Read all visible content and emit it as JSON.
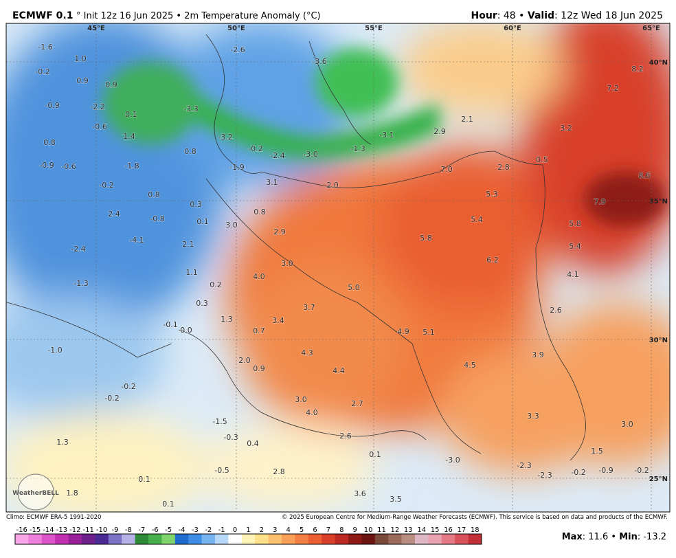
{
  "header": {
    "model": "ECMWF 0.1",
    "init": "° Init 12z 16 Jun 2025 • 2m Temperature Anomaly (°C)",
    "hour_label": "Hour",
    "hour_text": ": 48 • ",
    "valid_label": "Valid",
    "valid_text": ": 12z Wed 18 Jun 2025"
  },
  "graticule": {
    "lon": [
      "45°E",
      "50°E",
      "55°E",
      "60°E",
      "65°E"
    ],
    "lat": [
      "40°N",
      "35°N",
      "30°N",
      "25°N"
    ]
  },
  "map_labels": [
    "-1.6",
    "-0.2",
    "-0.9",
    "0.8",
    "-0.9",
    "-0.6",
    "-0.2",
    "1.0",
    "0.9",
    "0.9",
    "-2.2",
    "0.1",
    "-0.6",
    "1.4",
    "-3.3",
    "-3.2",
    "0.8",
    "-1.8",
    "0.8",
    "0.3",
    "0.1",
    "-0.8",
    "2.4",
    "-4.1",
    "2.1",
    "-2.4",
    "-1.3",
    "1.1",
    "0.2",
    "0.3",
    "1.3",
    "-0.1",
    "0.0",
    "0.7",
    "3.4",
    "4.0",
    "3.0",
    "3.7",
    "-1.0",
    "4.3",
    "2.0",
    "0.9",
    "4.4",
    "-0.2",
    "-0.2",
    "3.0",
    "4.0",
    "2.7",
    "1.3",
    "-1.5",
    "-0.3",
    "0.4",
    "2.6",
    "0.1",
    "-0.5",
    "2.8",
    "0.1",
    "1.8",
    "0.1",
    "3.5",
    "3.6",
    "-2.6",
    "-3.6",
    "-1.9",
    "-0.2",
    "-2.4",
    "-3.0",
    "-1.3",
    "-3.1",
    "3.1",
    "2.0",
    "2.1",
    "2.9",
    "7.0",
    "2.8",
    "0.5",
    "3.2",
    "8.2",
    "7.2",
    "8.6",
    "7.9",
    "5.8",
    "5.4",
    "4.1",
    "2.6",
    "5.3",
    "5.4",
    "5.8",
    "6.2",
    "5.0",
    "4.9",
    "5.1",
    "4.5",
    "3.9",
    "3.3",
    "3.0",
    "1.5",
    "-3.0",
    "-2.3",
    "-2.3",
    "-0.2",
    "-0.9",
    "-0.2",
    "3.0",
    "0.8",
    "2.9"
  ],
  "logo": "WeatherBELL",
  "footer": {
    "climo": "Climo: ECMWF ERA-5 1991-2020",
    "copyright": "© 2025 European Centre for Medium-Range Weather Forecasts (ECMWF). This service is based on data and products of the ECMWF.",
    "max_label": "Max",
    "max_text": ": 11.6 • ",
    "min_label": "Min",
    "min_text": ": -13.2"
  },
  "colorbar": {
    "ticks": [
      -16,
      -15,
      -14,
      -13,
      -12,
      -11,
      -10,
      -9,
      -8,
      -7,
      -6,
      -5,
      -4,
      -3,
      -2,
      -1,
      0,
      1,
      2,
      3,
      4,
      5,
      6,
      7,
      8,
      9,
      10,
      11,
      12,
      13,
      14,
      15,
      16,
      17,
      18
    ],
    "colors": [
      "#f7a6e8",
      "#ee7fdc",
      "#dc55c8",
      "#c22fb0",
      "#9a1f9a",
      "#6e1f8c",
      "#4b2a94",
      "#7d74c8",
      "#b6b1e6",
      "#2e8b3a",
      "#46b04c",
      "#7fd46b",
      "#1f6bd0",
      "#3f8ee6",
      "#76b3f0",
      "#b7d9f7",
      "#ffffff",
      "#fff3b8",
      "#fde08a",
      "#fbc070",
      "#f8a05a",
      "#f47f45",
      "#ec5f33",
      "#d8402a",
      "#bb2a22",
      "#8e1a17",
      "#6a1512",
      "#7a4a3a",
      "#9a6a5c",
      "#b98f84",
      "#ddb8c4",
      "#e8a2b0",
      "#e47a86",
      "#d8525c",
      "#c22f38"
    ]
  }
}
